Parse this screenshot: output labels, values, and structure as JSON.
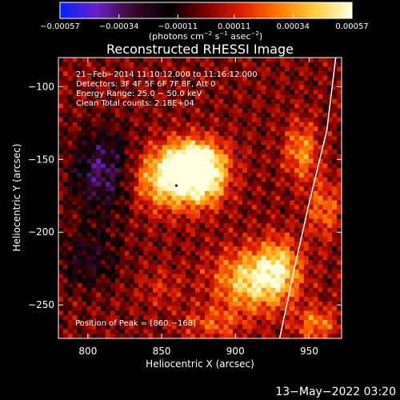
{
  "chart_data": {
    "type": "heatmap",
    "title": "Reconstructed RHESSI Image",
    "xlabel": "Heliocentric X (arcsec)",
    "ylabel": "Heliocentric Y (arcsec)",
    "xlim": [
      780,
      972
    ],
    "ylim": [
      -273,
      -80
    ],
    "x_ticks": [
      800,
      850,
      900,
      950
    ],
    "x_tick_labels": [
      "800",
      "850",
      "900",
      "950"
    ],
    "y_ticks": [
      -100,
      -150,
      -200,
      -250
    ],
    "y_tick_labels": [
      "−100",
      "−150",
      "−200",
      "−250"
    ],
    "colorbar": {
      "range": [
        -0.00057,
        0.00057
      ],
      "ticks": [
        -0.00057,
        -0.00034,
        -0.00011,
        0.00011,
        0.00034,
        0.00057
      ],
      "tick_labels": [
        "−0.00057",
        "−0.00034",
        "−0.00011",
        "0.00011",
        "0.00034",
        "0.00057"
      ],
      "unit_main": "(photons cm",
      "unit_exp1": "−2",
      "unit_mid": " s",
      "unit_exp2": "−1",
      "unit_tail": " asec",
      "unit_exp3": "−2",
      "unit_close": ")",
      "colormap": [
        "#0022ff",
        "#6a1fc9",
        "#3a0a2a",
        "#000000",
        "#7a0000",
        "#e02000",
        "#ff7a00",
        "#ffd040",
        "#ffffe0"
      ]
    },
    "info_lines": [
      "21−Feb−2014 11:10:12.000 to 11:16:12.000",
      "Detectors: 3F 4F 5F 6F 7F 8F, Att 0",
      "Energy Range: 25.0 − 50.0 keV",
      "Clean    Total counts: 2.18E+04"
    ],
    "peak_label": "Position of Peak = [860,−168]",
    "peak": [
      860,
      -168
    ],
    "sources": [
      {
        "x": 858,
        "y": -165,
        "amp": 1.0,
        "sx": 18,
        "sy": 14
      },
      {
        "x": 872,
        "y": -150,
        "amp": 0.8,
        "sx": 14,
        "sy": 10
      },
      {
        "x": 880,
        "y": -165,
        "amp": 0.65,
        "sx": 10,
        "sy": 12
      },
      {
        "x": 912,
        "y": -235,
        "amp": 0.85,
        "sx": 18,
        "sy": 15
      },
      {
        "x": 930,
        "y": -225,
        "amp": 0.55,
        "sx": 10,
        "sy": 14
      },
      {
        "x": 945,
        "y": -145,
        "amp": 0.55,
        "sx": 8,
        "sy": 14
      },
      {
        "x": 960,
        "y": -185,
        "amp": 0.45,
        "sx": 8,
        "sy": 14
      },
      {
        "x": 955,
        "y": -265,
        "amp": 0.5,
        "sx": 10,
        "sy": 8
      },
      {
        "x": 885,
        "y": -265,
        "amp": 0.35,
        "sx": 14,
        "sy": 8
      },
      {
        "x": 850,
        "y": -240,
        "amp": 0.2,
        "sx": 10,
        "sy": 10
      },
      {
        "x": 810,
        "y": -160,
        "amp": -0.6,
        "sx": 14,
        "sy": 20
      },
      {
        "x": 800,
        "y": -220,
        "amp": -0.35,
        "sx": 14,
        "sy": 14
      }
    ],
    "limb_curve": [
      [
        968,
        -80
      ],
      [
        962,
        -130
      ],
      [
        950,
        -180
      ],
      [
        940,
        -225
      ],
      [
        930,
        -273
      ]
    ],
    "grid": false
  },
  "footer": {
    "date": "13−May−2022 03:20"
  }
}
